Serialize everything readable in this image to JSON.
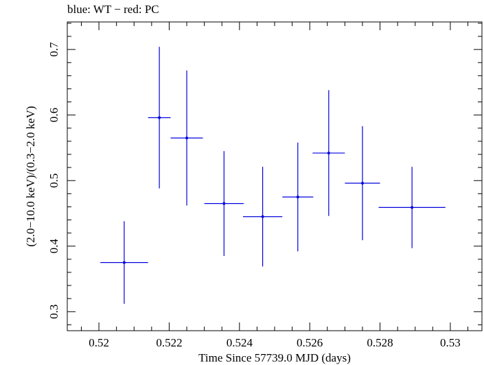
{
  "chart_data": {
    "type": "scatter",
    "title": "blue: WT − red: PC",
    "xlabel": "Time Since 57739.0 MJD (days)",
    "ylabel": "(2.0−10.0 keV)/(0.3−2.0 keV)",
    "xlim": [
      0.5191,
      0.5309
    ],
    "ylim": [
      0.271,
      0.742
    ],
    "x_ticks": [
      0.52,
      0.522,
      0.524,
      0.526,
      0.528,
      0.53
    ],
    "x_tick_labels": [
      "0.52",
      "0.522",
      "0.524",
      "0.526",
      "0.528",
      "0.53"
    ],
    "y_ticks": [
      0.3,
      0.4,
      0.5,
      0.6,
      0.7
    ],
    "y_tick_labels": [
      "0.3",
      "0.4",
      "0.5",
      "0.6",
      "0.7"
    ],
    "grid": false,
    "series": [
      {
        "color": "#0000dd",
        "points": [
          {
            "x": 0.52072,
            "y": 0.375,
            "xerr": 0.00068,
            "yerr_low": 0.063,
            "yerr_high": 0.063
          },
          {
            "x": 0.52172,
            "y": 0.596,
            "xerr": 0.00032,
            "yerr_low": 0.108,
            "yerr_high": 0.108
          },
          {
            "x": 0.5225,
            "y": 0.565,
            "xerr": 0.00046,
            "yerr_low": 0.103,
            "yerr_high": 0.103
          },
          {
            "x": 0.52356,
            "y": 0.465,
            "xerr": 0.00056,
            "yerr_low": 0.08,
            "yerr_high": 0.08
          },
          {
            "x": 0.52466,
            "y": 0.445,
            "xerr": 0.00056,
            "yerr_low": 0.076,
            "yerr_high": 0.076
          },
          {
            "x": 0.52566,
            "y": 0.475,
            "xerr": 0.00044,
            "yerr_low": 0.083,
            "yerr_high": 0.083
          },
          {
            "x": 0.52654,
            "y": 0.542,
            "xerr": 0.00046,
            "yerr_low": 0.096,
            "yerr_high": 0.096
          },
          {
            "x": 0.5275,
            "y": 0.496,
            "xerr": 0.0005,
            "yerr_low": 0.087,
            "yerr_high": 0.087
          },
          {
            "x": 0.52891,
            "y": 0.459,
            "xerr": 0.00095,
            "yerr_low": 0.062,
            "yerr_high": 0.062
          }
        ]
      }
    ]
  }
}
